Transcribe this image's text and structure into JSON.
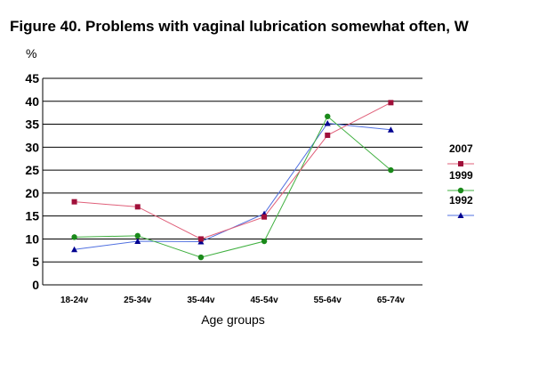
{
  "title": "Figure 40. Problems with vaginal lubrication somewhat often, W",
  "unit_label": "%",
  "chart_data": {
    "type": "line",
    "title": "Figure 40. Problems with vaginal lubrication somewhat often, W",
    "xlabel": "Age groups",
    "ylabel": "%",
    "ylim": [
      0,
      45
    ],
    "yticks": [
      0,
      5,
      10,
      15,
      20,
      25,
      30,
      35,
      40,
      45
    ],
    "grid": true,
    "legend_position": "right",
    "categories": [
      "18-24v",
      "25-34v",
      "35-44v",
      "45-54v",
      "55-64v",
      "65-74v"
    ],
    "series": [
      {
        "name": "2007",
        "color": "#e0607a",
        "marker": "square",
        "marker_color": "#a0103a",
        "values": [
          18.1,
          17.0,
          10.0,
          14.8,
          32.6,
          39.7
        ]
      },
      {
        "name": "1999",
        "color": "#40b040",
        "marker": "circle",
        "marker_color": "#1a8a1a",
        "values": [
          10.4,
          10.7,
          6.0,
          9.5,
          36.7,
          25.0
        ]
      },
      {
        "name": "1992",
        "color": "#5070e0",
        "marker": "triangle",
        "marker_color": "#000090",
        "values": [
          7.7,
          9.5,
          9.4,
          15.5,
          35.2,
          33.8
        ]
      }
    ]
  }
}
